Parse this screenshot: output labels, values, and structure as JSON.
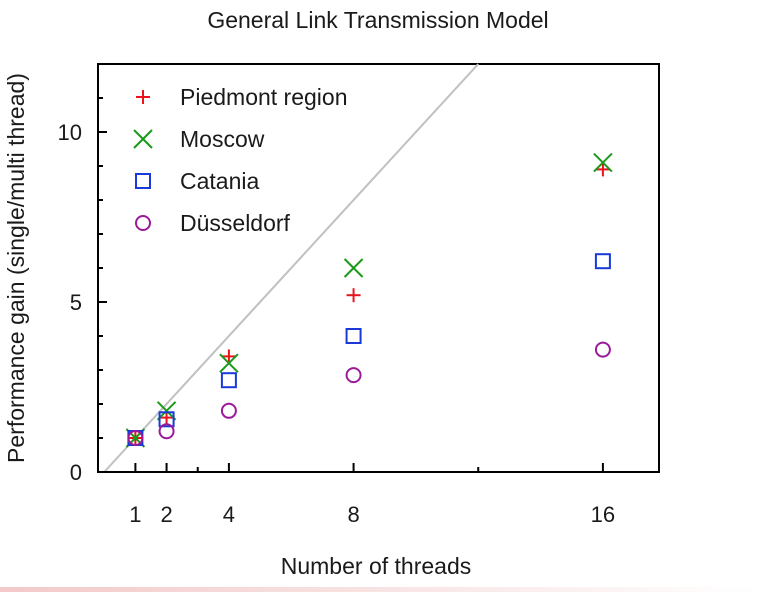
{
  "chart_data": {
    "type": "scatter",
    "title": "General Link Transmission Model",
    "xlabel": "Number of threads",
    "ylabel": "Performance gain (single/multi thread)",
    "xlim": [
      -0.2,
      17.8
    ],
    "ylim": [
      0,
      12
    ],
    "x_ticks": [
      1,
      2,
      4,
      8,
      16
    ],
    "x_tick_labels": [
      "1",
      "2",
      "4",
      "8",
      "16"
    ],
    "y_ticks": [
      0,
      5,
      10
    ],
    "y_tick_labels": [
      "0",
      "5",
      "10"
    ],
    "grid": false,
    "legend_position": "top-left",
    "reference_line": {
      "kind": "ideal-speedup y=x",
      "color": "#c0c0c0"
    },
    "series": [
      {
        "name": "Piedmont region",
        "marker": "plus",
        "color": "#e8141c",
        "points": [
          [
            1,
            1.0
          ],
          [
            2,
            1.6
          ],
          [
            4,
            3.4
          ],
          [
            8,
            5.2
          ],
          [
            16,
            8.9
          ]
        ]
      },
      {
        "name": "Moscow",
        "marker": "cross",
        "color": "#1a9a1a",
        "points": [
          [
            1,
            1.0
          ],
          [
            2,
            1.8
          ],
          [
            4,
            3.2
          ],
          [
            8,
            6.0
          ],
          [
            16,
            9.1
          ]
        ]
      },
      {
        "name": "Catania",
        "marker": "square",
        "color": "#1a3ad8",
        "points": [
          [
            1,
            1.0
          ],
          [
            2,
            1.55
          ],
          [
            4,
            2.7
          ],
          [
            8,
            4.0
          ],
          [
            16,
            6.2
          ]
        ]
      },
      {
        "name": "Düsseldorf",
        "marker": "circle",
        "color": "#9a1a9a",
        "points": [
          [
            1,
            1.0
          ],
          [
            2,
            1.2
          ],
          [
            4,
            1.8
          ],
          [
            8,
            2.85
          ],
          [
            16,
            3.6
          ]
        ]
      }
    ]
  }
}
